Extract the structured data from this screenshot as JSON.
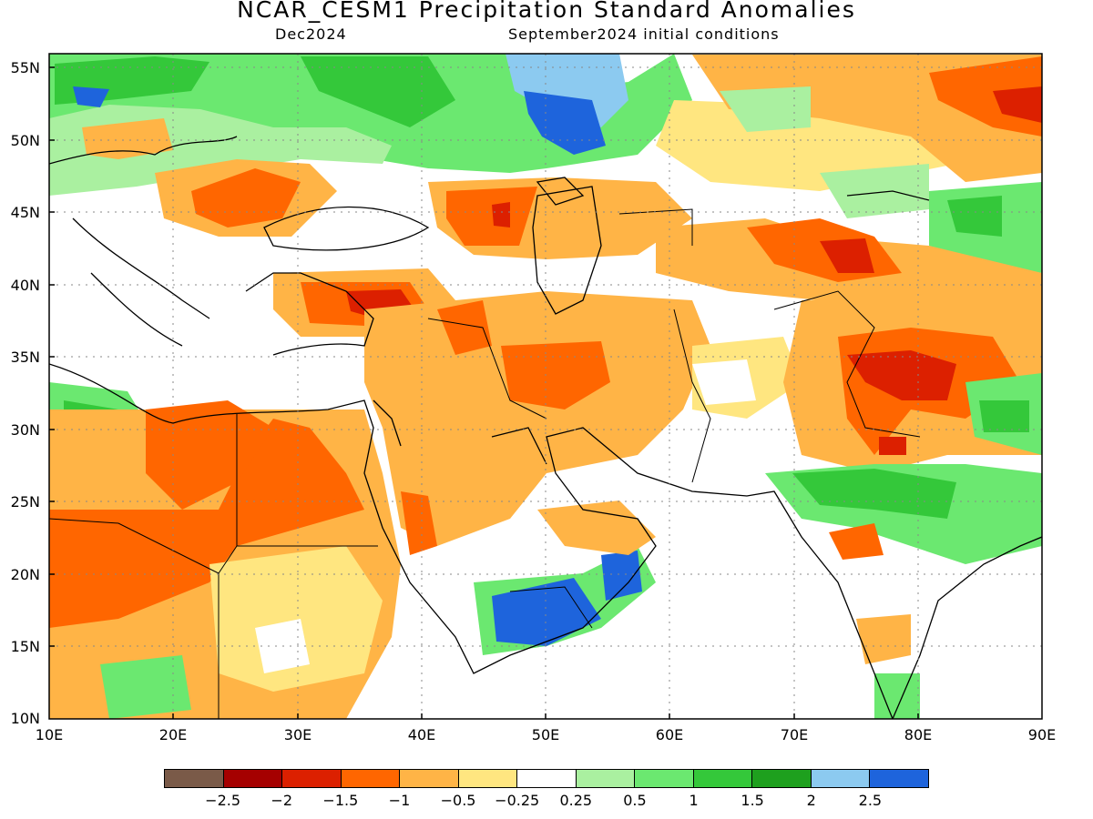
{
  "title": "NCAR_CESM1 Precipitation Standard Anomalies",
  "subtitle_left": "Dec2024",
  "subtitle_right": "September2024 initial conditions",
  "lat_labels": [
    "55N",
    "50N",
    "45N",
    "40N",
    "35N",
    "30N",
    "25N",
    "20N",
    "15N",
    "10N"
  ],
  "lon_labels": [
    "10E",
    "20E",
    "30E",
    "40E",
    "50E",
    "60E",
    "70E",
    "80E",
    "90E"
  ],
  "colorbar": {
    "colors": [
      "#7a5a48",
      "#a50000",
      "#dc2000",
      "#ff6600",
      "#ffb446",
      "#ffe680",
      "#ffffff",
      "#aaf0a0",
      "#6be870",
      "#34c83a",
      "#1ea01e",
      "#8ccaf0",
      "#1e64dc"
    ],
    "labels": [
      "−2.5",
      "−2",
      "−1.5",
      "−1",
      "−0.5",
      "−0.25",
      "0.25",
      "0.5",
      "1",
      "1.5",
      "2",
      "2.5"
    ]
  },
  "map": {
    "lon_range": [
      10,
      90
    ],
    "lat_range": [
      10,
      56
    ],
    "grid": "dotted"
  }
}
